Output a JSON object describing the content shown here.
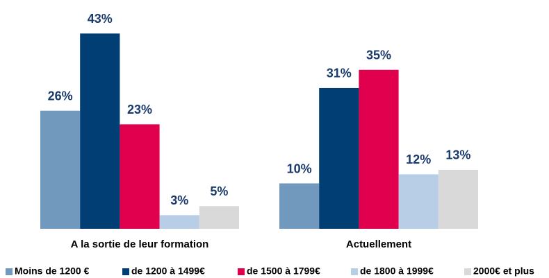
{
  "chart_data": {
    "type": "bar",
    "categories": [
      "A la sortie de leur formation",
      "Actuellement"
    ],
    "series": [
      {
        "name": "Moins de 1200 €",
        "color": "#7099bd",
        "values": [
          26,
          10
        ],
        "value_labels": [
          "26%",
          "10%"
        ]
      },
      {
        "name": "de 1200 à 1499€",
        "color": "#003e73",
        "values": [
          43,
          31
        ],
        "value_labels": [
          "43%",
          "31%"
        ]
      },
      {
        "name": "de 1500 à 1799€",
        "color": "#e0004d",
        "values": [
          23,
          35
        ],
        "value_labels": [
          "23%",
          "35%"
        ]
      },
      {
        "name": "de 1800 à 1999€",
        "color": "#b8cde6",
        "values": [
          3,
          12
        ],
        "value_labels": [
          "3%",
          "12%"
        ]
      },
      {
        "name": "2000€ et plus",
        "color": "#d9d9d9",
        "values": [
          5,
          13
        ],
        "value_labels": [
          "5%",
          "13%"
        ]
      }
    ],
    "legend": "bottom"
  }
}
